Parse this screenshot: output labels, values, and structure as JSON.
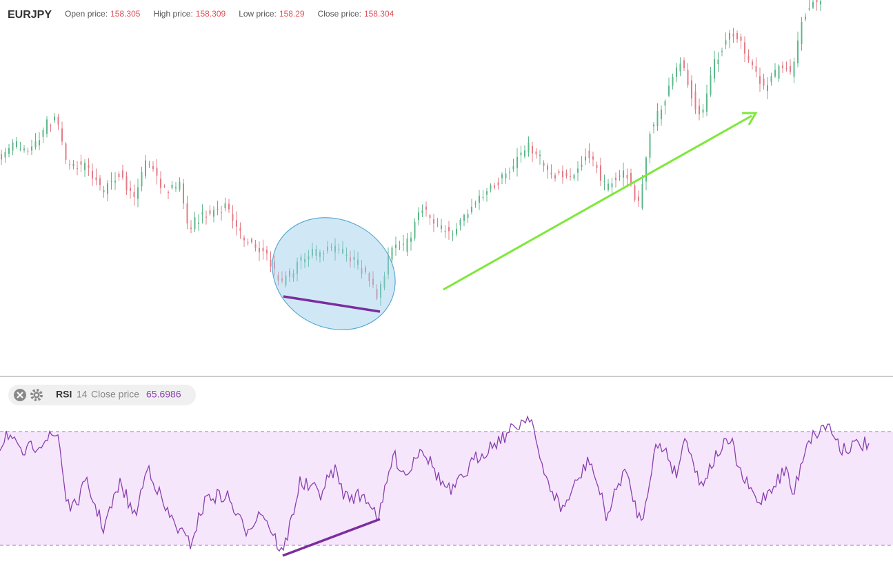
{
  "header": {
    "symbol": "EURJPY",
    "fields": [
      {
        "label": "Open price:",
        "value": 158.305
      },
      {
        "label": "High price:",
        "value": 158.309
      },
      {
        "label": "Low price:",
        "value": 158.29
      },
      {
        "label": "Close price:",
        "value": 158.304
      }
    ]
  },
  "indicator": {
    "name": "RSI",
    "period": 14,
    "source": "Close price",
    "value": 65.6986
  }
}
